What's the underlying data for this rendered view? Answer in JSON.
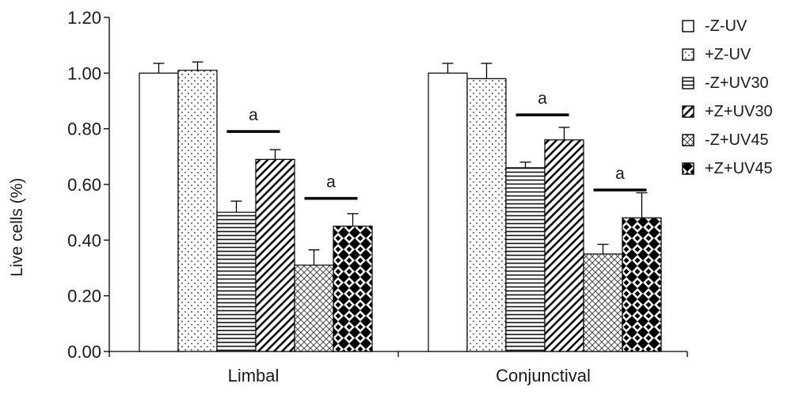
{
  "chart_data": {
    "type": "bar",
    "ylabel": "Live cells (%)",
    "ylim": [
      0,
      1.2
    ],
    "yticks": [
      "0.00",
      "0.20",
      "0.40",
      "0.60",
      "0.80",
      "1.00",
      "1.20"
    ],
    "grid": false,
    "legend_position": "right",
    "categories": [
      "Limbal",
      "Conjunctival"
    ],
    "series": [
      {
        "name": "-Z-UV",
        "pattern": "open",
        "values": [
          1.0,
          1.0
        ],
        "errors": [
          0.035,
          0.035
        ]
      },
      {
        "name": "+Z-UV",
        "pattern": "dots",
        "values": [
          1.01,
          0.98
        ],
        "errors": [
          0.03,
          0.055
        ]
      },
      {
        "name": "-Z+UV30",
        "pattern": "horizontal-lines",
        "values": [
          0.5,
          0.66
        ],
        "errors": [
          0.04,
          0.02
        ]
      },
      {
        "name": "+Z+UV30",
        "pattern": "diagonal-lines",
        "values": [
          0.69,
          0.76
        ],
        "errors": [
          0.035,
          0.045
        ]
      },
      {
        "name": "-Z+UV45",
        "pattern": "crosshatch",
        "values": [
          0.31,
          0.35
        ],
        "errors": [
          0.055,
          0.035
        ]
      },
      {
        "name": "+Z+UV45",
        "pattern": "checker",
        "values": [
          0.45,
          0.48
        ],
        "errors": [
          0.045,
          0.09
        ]
      }
    ],
    "annotations": [
      {
        "text": "a",
        "category": "Limbal",
        "between": [
          "-Z+UV30",
          "+Z+UV30"
        ],
        "y": 0.79
      },
      {
        "text": "a",
        "category": "Limbal",
        "between": [
          "-Z+UV45",
          "+Z+UV45"
        ],
        "y": 0.55
      },
      {
        "text": "a",
        "category": "Conjunctival",
        "between": [
          "-Z+UV30",
          "+Z+UV30"
        ],
        "y": 0.85
      },
      {
        "text": "a",
        "category": "Conjunctival",
        "between": [
          "-Z+UV45",
          "+Z+UV45"
        ],
        "y": 0.58
      }
    ]
  }
}
